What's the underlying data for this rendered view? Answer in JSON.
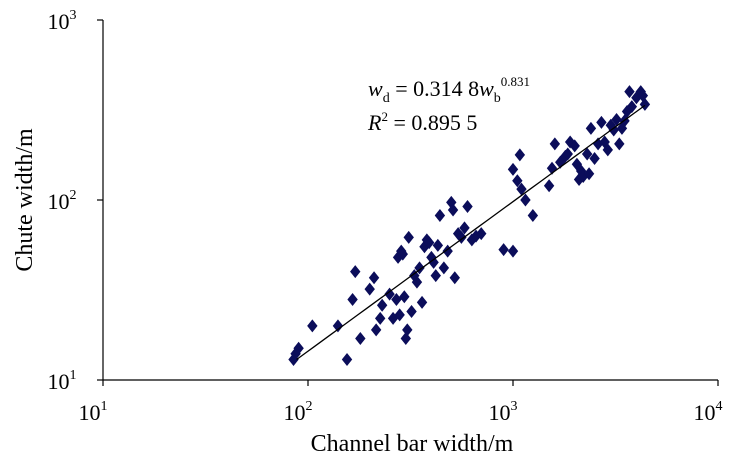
{
  "chart_data": {
    "type": "scatter",
    "xscale": "log",
    "yscale": "log",
    "xlim": [
      10,
      10000
    ],
    "ylim": [
      10,
      1000
    ],
    "xlabel": "Channel bar width/m",
    "ylabel": "Chute width/m",
    "x_ticks": [
      {
        "base": "10",
        "exp": "1"
      },
      {
        "base": "10",
        "exp": "2"
      },
      {
        "base": "10",
        "exp": "3"
      },
      {
        "base": "10",
        "exp": "4"
      }
    ],
    "y_ticks": [
      {
        "base": "10",
        "exp": "1"
      },
      {
        "base": "10",
        "exp": "2"
      },
      {
        "base": "10",
        "exp": "3"
      }
    ],
    "annotation": {
      "eq_var": "w",
      "eq_var_sub": "d",
      "eq_mid": " = 0.314 8",
      "eq_var2": "w",
      "eq_var2_sub": "b",
      "eq_exp": "0.831",
      "r2_var": "R",
      "r2_exp": "2",
      "r2_rest": " = 0.895 5"
    },
    "fit": {
      "a": 0.3148,
      "b": 0.831,
      "x_range": [
        88,
        4400
      ]
    },
    "marker_color": "#0b0d5a",
    "points": [
      [
        85,
        13
      ],
      [
        90,
        15
      ],
      [
        87,
        14
      ],
      [
        105,
        20
      ],
      [
        140,
        20
      ],
      [
        155,
        13
      ],
      [
        165,
        28
      ],
      [
        170,
        40
      ],
      [
        180,
        17
      ],
      [
        200,
        32
      ],
      [
        210,
        37
      ],
      [
        215,
        19
      ],
      [
        225,
        22
      ],
      [
        230,
        26
      ],
      [
        250,
        30
      ],
      [
        260,
        22
      ],
      [
        270,
        28
      ],
      [
        275,
        48
      ],
      [
        280,
        23
      ],
      [
        285,
        52
      ],
      [
        290,
        50
      ],
      [
        295,
        29
      ],
      [
        300,
        17
      ],
      [
        305,
        19
      ],
      [
        310,
        62
      ],
      [
        320,
        24
      ],
      [
        330,
        38
      ],
      [
        340,
        35
      ],
      [
        350,
        42
      ],
      [
        360,
        27
      ],
      [
        370,
        55
      ],
      [
        380,
        60
      ],
      [
        390,
        58
      ],
      [
        400,
        48
      ],
      [
        410,
        45
      ],
      [
        420,
        38
      ],
      [
        430,
        56
      ],
      [
        440,
        82
      ],
      [
        460,
        42
      ],
      [
        480,
        52
      ],
      [
        500,
        97
      ],
      [
        510,
        88
      ],
      [
        520,
        37
      ],
      [
        540,
        65
      ],
      [
        560,
        62
      ],
      [
        580,
        70
      ],
      [
        600,
        92
      ],
      [
        630,
        60
      ],
      [
        660,
        63
      ],
      [
        700,
        65
      ],
      [
        900,
        53
      ],
      [
        1000,
        52
      ],
      [
        1000,
        148
      ],
      [
        1050,
        128
      ],
      [
        1080,
        178
      ],
      [
        1100,
        115
      ],
      [
        1150,
        100
      ],
      [
        1250,
        82
      ],
      [
        1500,
        120
      ],
      [
        1550,
        150
      ],
      [
        1600,
        205
      ],
      [
        1700,
        162
      ],
      [
        1800,
        175
      ],
      [
        1850,
        180
      ],
      [
        1900,
        210
      ],
      [
        2000,
        200
      ],
      [
        2050,
        158
      ],
      [
        2100,
        130
      ],
      [
        2150,
        145
      ],
      [
        2200,
        135
      ],
      [
        2300,
        180
      ],
      [
        2350,
        140
      ],
      [
        2400,
        250
      ],
      [
        2500,
        170
      ],
      [
        2600,
        205
      ],
      [
        2700,
        270
      ],
      [
        2800,
        210
      ],
      [
        2900,
        190
      ],
      [
        3000,
        260
      ],
      [
        3100,
        245
      ],
      [
        3200,
        280
      ],
      [
        3300,
        205
      ],
      [
        3400,
        250
      ],
      [
        3500,
        275
      ],
      [
        3600,
        310
      ],
      [
        3700,
        400
      ],
      [
        3800,
        330
      ],
      [
        4000,
        370
      ],
      [
        4200,
        400
      ],
      [
        4300,
        380
      ],
      [
        4400,
        340
      ]
    ]
  }
}
